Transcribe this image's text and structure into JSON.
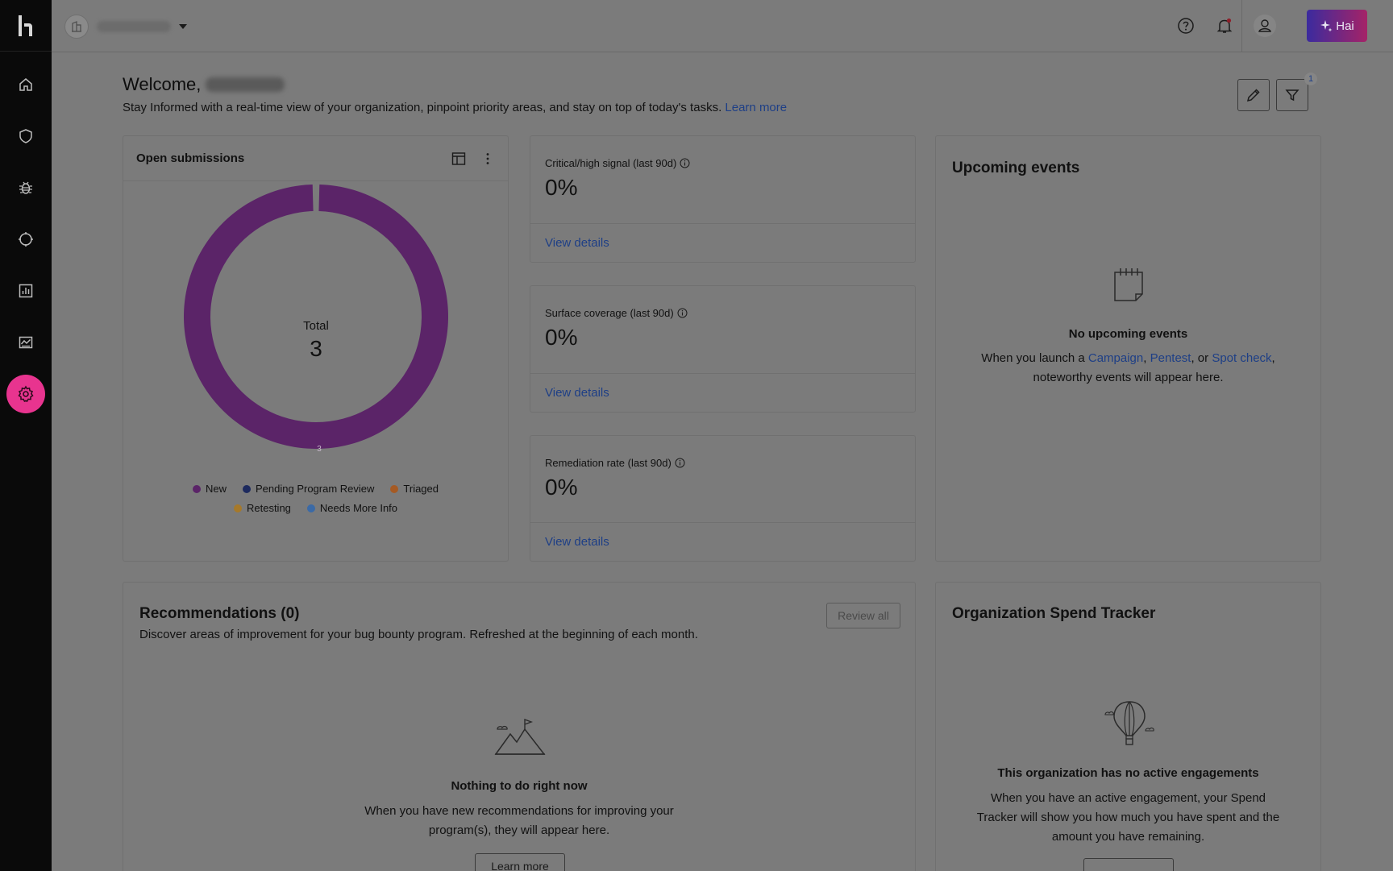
{
  "topbar": {
    "help_icon": "help-circle-icon",
    "notification_icon": "bell-icon",
    "profile_icon": "user-icon",
    "hai_label": "Hai"
  },
  "sidebar": {
    "items": [
      {
        "name": "home",
        "icon": "home-icon"
      },
      {
        "name": "shield",
        "icon": "shield-icon"
      },
      {
        "name": "bug",
        "icon": "bug-icon"
      },
      {
        "name": "target",
        "icon": "target-icon"
      },
      {
        "name": "reports",
        "icon": "bar-chart-icon"
      },
      {
        "name": "analytics",
        "icon": "line-chart-icon"
      },
      {
        "name": "settings",
        "icon": "gear-icon",
        "active": true
      }
    ]
  },
  "welcome": {
    "title": "Welcome,",
    "subtitle": "Stay Informed with a real-time view of your organization, pinpoint priority areas, and stay on top of today's tasks.",
    "learn_more": "Learn more",
    "filter_badge": "1"
  },
  "open_submissions": {
    "title": "Open submissions",
    "total_label": "Total",
    "total_value": "3",
    "legend": [
      {
        "label": "New",
        "color": "#5b2468"
      },
      {
        "label": "Pending Program Review",
        "color": "#1d2a5e"
      },
      {
        "label": "Triaged",
        "color": "#a55a24"
      },
      {
        "label": "Retesting",
        "color": "#a6792a"
      },
      {
        "label": "Needs More Info",
        "color": "#3b6aa6"
      }
    ]
  },
  "chart_data": {
    "type": "pie",
    "categories": [
      "New",
      "Pending Program Review",
      "Triaged",
      "Retesting",
      "Needs More Info"
    ],
    "values": [
      3,
      0,
      0,
      0,
      0
    ],
    "data_label": "3",
    "center_label": "Total",
    "center_value": "3"
  },
  "stats": [
    {
      "label": "Critical/high signal (last 90d)",
      "value": "0%",
      "link": "View details"
    },
    {
      "label": "Surface coverage (last 90d)",
      "value": "0%",
      "link": "View details"
    },
    {
      "label": "Remediation rate (last 90d)",
      "value": "0%",
      "link": "View details"
    }
  ],
  "upcoming_events": {
    "title": "Upcoming events",
    "empty_title": "No upcoming events",
    "text_before": "When you launch a",
    "link_campaign": "Campaign",
    "sep1": ",",
    "link_pentest": "Pentest",
    "sep2": ", or",
    "link_spot": "Spot check",
    "sep3": ",",
    "text_after": "noteworthy events will appear here."
  },
  "recommendations": {
    "title": "Recommendations (0)",
    "subtitle": "Discover areas of improvement for your bug bounty program. Refreshed at the beginning of each month.",
    "review_all": "Review all",
    "empty_title": "Nothing to do right now",
    "empty_text_1": "When you have new recommendations for improving your",
    "empty_text_2": "program(s), they will appear here.",
    "learn_more": "Learn more"
  },
  "spend_tracker": {
    "title": "Organization Spend Tracker",
    "empty_title": "This organization has no active engagements",
    "empty_text_1": "When you have an active engagement, your Spend",
    "empty_text_2": "Tracker will show you how much you have spent and the",
    "empty_text_3": "amount you have remaining."
  }
}
